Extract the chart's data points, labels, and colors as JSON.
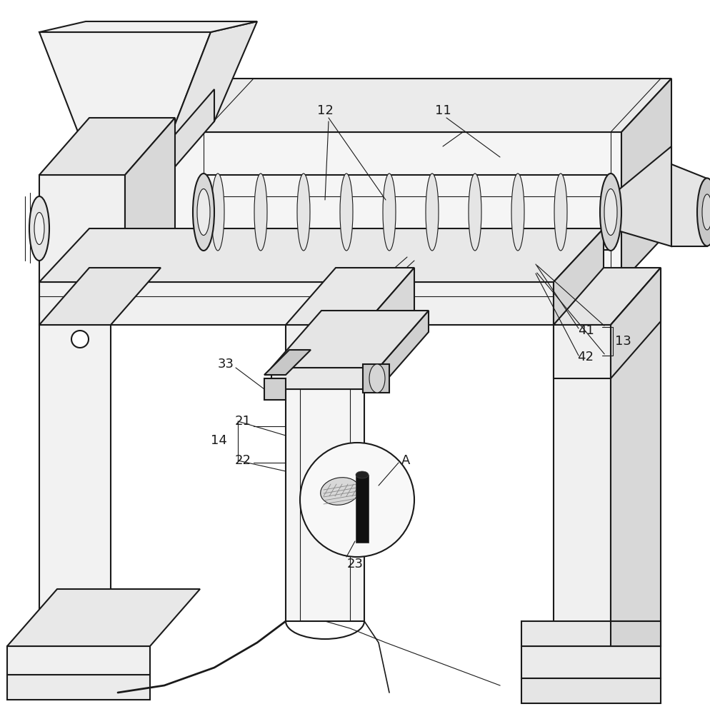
{
  "background_color": "#ffffff",
  "line_color": "#1a1a1a",
  "light_gray": "#e8e8e8",
  "mid_gray": "#d0d0d0",
  "dark_gray": "#b0b0b0",
  "lw_main": 1.5,
  "lw_thin": 0.8,
  "lw_thick": 2.2,
  "figsize": [
    9.94,
    10.0
  ],
  "dpi": 100,
  "label_fontsize": 13
}
